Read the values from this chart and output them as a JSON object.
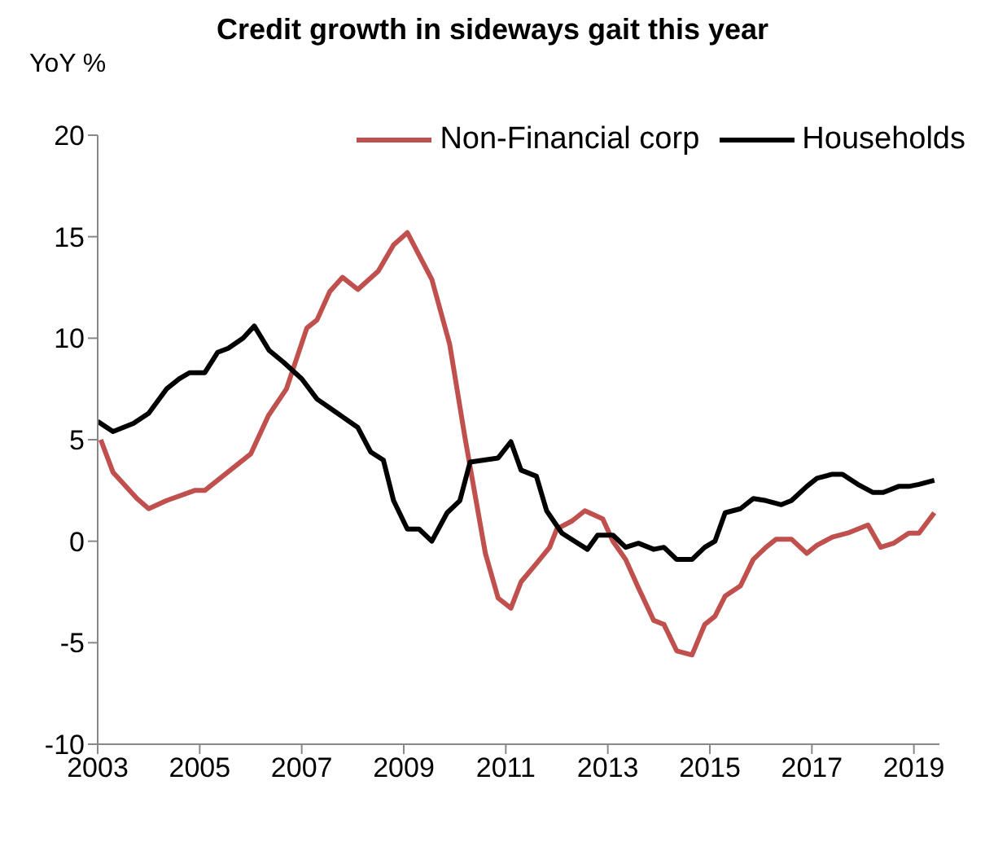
{
  "chart_data": {
    "type": "line",
    "title": "Credit growth in sideways gait this year",
    "ylabel": "YoY %",
    "xlim": [
      2003,
      2019.5
    ],
    "xticks": [
      2003,
      2005,
      2007,
      2009,
      2011,
      2013,
      2015,
      2017,
      2019
    ],
    "ylim": [
      -10,
      20
    ],
    "yticks": [
      -10,
      -5,
      0,
      5,
      10,
      15,
      20
    ],
    "grid": false,
    "legend": "top",
    "marker": "none",
    "line_style": "solid",
    "series": [
      {
        "name": "Non-Financial corp",
        "color": "#c0504d",
        "x": [
          2003.06,
          2003.3,
          2003.77,
          2004.0,
          2004.35,
          2004.9,
          2005.1,
          2005.5,
          2006.0,
          2006.35,
          2006.7,
          2007.1,
          2007.3,
          2007.55,
          2007.8,
          2008.1,
          2008.5,
          2008.8,
          2009.07,
          2009.55,
          2009.9,
          2010.2,
          2010.6,
          2010.85,
          2011.1,
          2011.3,
          2011.6,
          2011.86,
          2012.0,
          2012.3,
          2012.55,
          2012.9,
          2013.1,
          2013.35,
          2013.6,
          2013.9,
          2014.1,
          2014.35,
          2014.65,
          2014.9,
          2015.1,
          2015.3,
          2015.6,
          2015.85,
          2016.1,
          2016.3,
          2016.6,
          2016.9,
          2017.1,
          2017.4,
          2017.7,
          2017.9,
          2018.1,
          2018.35,
          2018.6,
          2018.9,
          2019.1,
          2019.4
        ],
        "values": [
          5.0,
          3.4,
          2.1,
          1.6,
          2.0,
          2.5,
          2.5,
          3.3,
          4.3,
          6.2,
          7.5,
          10.5,
          10.9,
          12.3,
          13.0,
          12.4,
          13.3,
          14.6,
          15.2,
          12.9,
          9.7,
          5.1,
          -0.6,
          -2.8,
          -3.3,
          -2.0,
          -1.1,
          -0.3,
          0.6,
          1.0,
          1.5,
          1.1,
          0.0,
          -0.9,
          -2.3,
          -3.9,
          -4.1,
          -5.4,
          -5.6,
          -4.1,
          -3.7,
          -2.7,
          -2.2,
          -0.9,
          -0.3,
          0.1,
          0.1,
          -0.6,
          -0.2,
          0.2,
          0.4,
          0.6,
          0.8,
          -0.3,
          -0.1,
          0.4,
          0.4,
          1.4
        ]
      },
      {
        "name": "Households",
        "color": "#000000",
        "x": [
          2003.0,
          2003.3,
          2003.7,
          2004.0,
          2004.35,
          2004.6,
          2004.8,
          2005.1,
          2005.35,
          2005.56,
          2005.85,
          2006.07,
          2006.36,
          2006.65,
          2007.0,
          2007.3,
          2007.7,
          2008.1,
          2008.35,
          2008.6,
          2008.8,
          2009.07,
          2009.3,
          2009.55,
          2009.85,
          2010.1,
          2010.3,
          2010.85,
          2011.1,
          2011.3,
          2011.6,
          2011.8,
          2012.1,
          2012.35,
          2012.6,
          2012.8,
          2013.1,
          2013.35,
          2013.6,
          2013.9,
          2014.1,
          2014.35,
          2014.65,
          2014.9,
          2015.1,
          2015.3,
          2015.6,
          2015.85,
          2016.1,
          2016.4,
          2016.6,
          2016.9,
          2017.1,
          2017.4,
          2017.6,
          2017.9,
          2018.2,
          2018.4,
          2018.7,
          2018.9,
          2019.1,
          2019.4
        ],
        "values": [
          5.9,
          5.4,
          5.8,
          6.3,
          7.5,
          8.0,
          8.3,
          8.3,
          9.3,
          9.5,
          10.0,
          10.6,
          9.4,
          8.8,
          8.0,
          7.0,
          6.3,
          5.6,
          4.4,
          4.0,
          2.0,
          0.6,
          0.6,
          0.0,
          1.4,
          2.0,
          3.9,
          4.1,
          4.9,
          3.5,
          3.2,
          1.5,
          0.4,
          0.0,
          -0.4,
          0.3,
          0.3,
          -0.3,
          -0.1,
          -0.4,
          -0.3,
          -0.9,
          -0.9,
          -0.3,
          0.0,
          1.4,
          1.6,
          2.1,
          2.0,
          1.8,
          2.0,
          2.7,
          3.1,
          3.3,
          3.3,
          2.8,
          2.4,
          2.4,
          2.7,
          2.7,
          2.8,
          3.0
        ]
      }
    ]
  }
}
